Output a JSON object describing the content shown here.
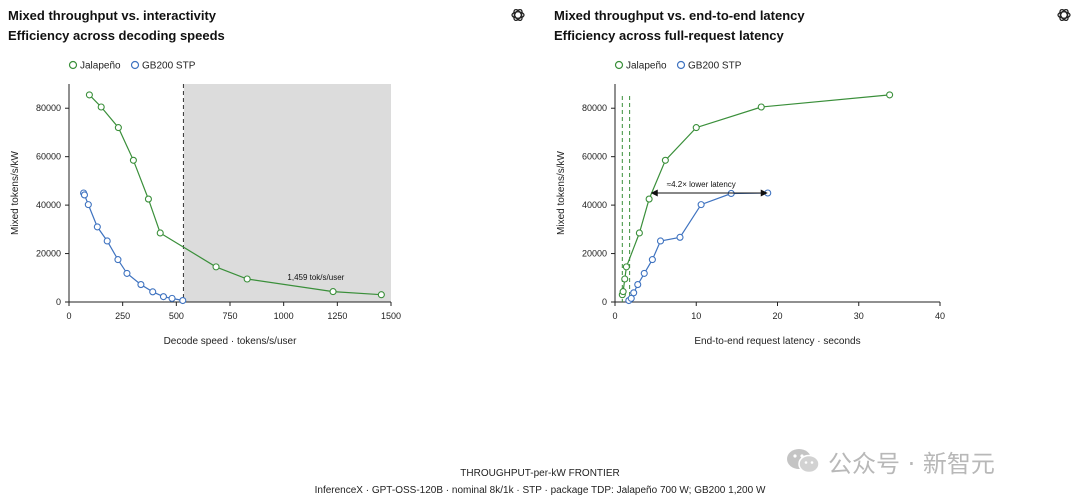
{
  "charts": [
    {
      "title": "Mixed throughput vs. interactivity",
      "subtitle": "Efficiency across decoding speeds",
      "logo_icon": "openai-logo-icon"
    },
    {
      "title": "Mixed throughput vs. end-to-end latency",
      "subtitle": "Efficiency across full-request latency",
      "logo_icon": "openai-logo-icon"
    }
  ],
  "chart_data": [
    {
      "type": "line",
      "title": "Mixed throughput vs. interactivity",
      "subtitle": "Efficiency across decoding speeds",
      "xlabel": "Decode speed · tokens/s/user",
      "ylabel": "Mixed tokens/s/kW",
      "xlim": [
        0,
        1500
      ],
      "ylim": [
        0,
        90000
      ],
      "xticks": [
        0,
        250,
        500,
        750,
        1000,
        1250,
        1500
      ],
      "yticks": [
        0,
        20000,
        40000,
        60000,
        80000
      ],
      "grid": false,
      "legend_position": "top-left",
      "series": [
        {
          "name": "Jalapeño",
          "color": "#3a8f3a",
          "x": [
            95,
            150,
            230,
            300,
            370,
            425,
            685,
            830,
            1230,
            1455
          ],
          "y": [
            85500,
            80500,
            72000,
            58500,
            42500,
            28500,
            14500,
            9500,
            4300,
            3000
          ]
        },
        {
          "name": "GB200 STP",
          "color": "#3f73c0",
          "x": [
            68,
            72,
            90,
            132,
            178,
            228,
            270,
            335,
            390,
            440,
            480,
            530
          ],
          "y": [
            45000,
            44200,
            40200,
            31000,
            25200,
            17500,
            11800,
            7200,
            4200,
            2200,
            1500,
            600
          ]
        }
      ],
      "shaded_region": {
        "x_from": 535,
        "x_to": 1500,
        "color": "#dcdcdc"
      },
      "vline": {
        "x": 533
      },
      "annotation": {
        "text": "1,459 tok/s/user",
        "x": 1150,
        "y": 9000
      }
    },
    {
      "type": "line",
      "title": "Mixed throughput vs. end-to-end latency",
      "subtitle": "Efficiency across full-request latency",
      "xlabel": "End-to-end request latency · seconds",
      "ylabel": "Mixed tokens/s/kW",
      "xlim": [
        0,
        40
      ],
      "ylim": [
        0,
        90000
      ],
      "xticks": [
        0,
        10,
        20,
        30,
        40
      ],
      "yticks": [
        0,
        20000,
        40000,
        60000,
        80000
      ],
      "grid": false,
      "legend_position": "top-left",
      "series": [
        {
          "name": "Jalapeño",
          "color": "#3a8f3a",
          "x": [
            0.9,
            1.0,
            1.2,
            1.4,
            3.0,
            4.2,
            6.2,
            10.0,
            18.0,
            33.8
          ],
          "y": [
            3000,
            4300,
            9500,
            14500,
            28500,
            42500,
            58500,
            72000,
            80500,
            85500
          ],
          "vlines": [
            0.9,
            1.8
          ]
        },
        {
          "name": "GB200 STP",
          "color": "#3f73c0",
          "x": [
            1.7,
            2.0,
            2.3,
            2.8,
            3.6,
            4.6,
            5.6,
            8.0,
            10.6,
            14.3,
            18.8
          ],
          "y": [
            600,
            1500,
            3800,
            7200,
            11800,
            17500,
            25200,
            26700,
            40200,
            44800,
            45000
          ]
        }
      ],
      "annotation": {
        "text": "≈4.2× lower latency",
        "from_x": 4.4,
        "to_x": 18.8,
        "y": 45000
      }
    }
  ],
  "footer": {
    "line1": "THROUGHPUT-per-kW FRONTIER",
    "line2": "InferenceX · GPT-OSS-120B · nominal 8k/1k · STP · package TDP: Jalapeño 700 W; GB200 1,200 W"
  },
  "watermark": {
    "icon": "wechat-logo-icon",
    "text": "公众号 · 新智元"
  }
}
